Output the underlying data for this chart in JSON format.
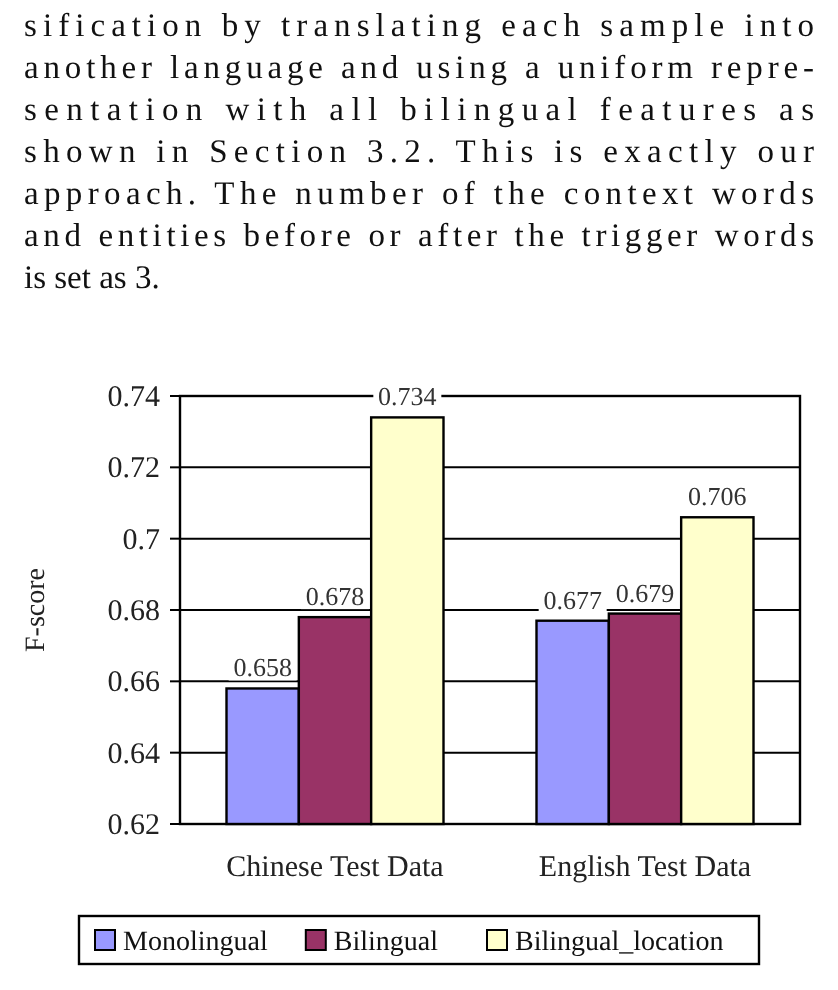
{
  "chart_data": {
    "type": "bar",
    "ylabel": "F-score",
    "categories": [
      "Chinese Test Data",
      "English Test Data"
    ],
    "series": [
      {
        "name": "Monolingual",
        "color": "#9999ff",
        "values": [
          0.658,
          0.677
        ]
      },
      {
        "name": "Bilingual",
        "color": "#993366",
        "values": [
          0.678,
          0.679
        ]
      },
      {
        "name": "Bilingual_location",
        "color": "#ffffcc",
        "values": [
          0.734,
          0.706
        ]
      }
    ],
    "ylim": [
      0.62,
      0.74
    ],
    "yticks": [
      0.62,
      0.64,
      0.66,
      0.68,
      {
        "value": 0.7,
        "label": "0.7"
      },
      0.72,
      0.74
    ],
    "grid": "y",
    "data_labels": true,
    "legend": "bottom",
    "annotations": [
      "sification by translating each sample into",
      "another language and using a uniform repre-",
      "sentation with all bilingual features as",
      "shown in Section 3.2. This is exactly our",
      "approach. The number of the context words",
      "and entities before or after the trigger words",
      "is set as 3."
    ]
  }
}
